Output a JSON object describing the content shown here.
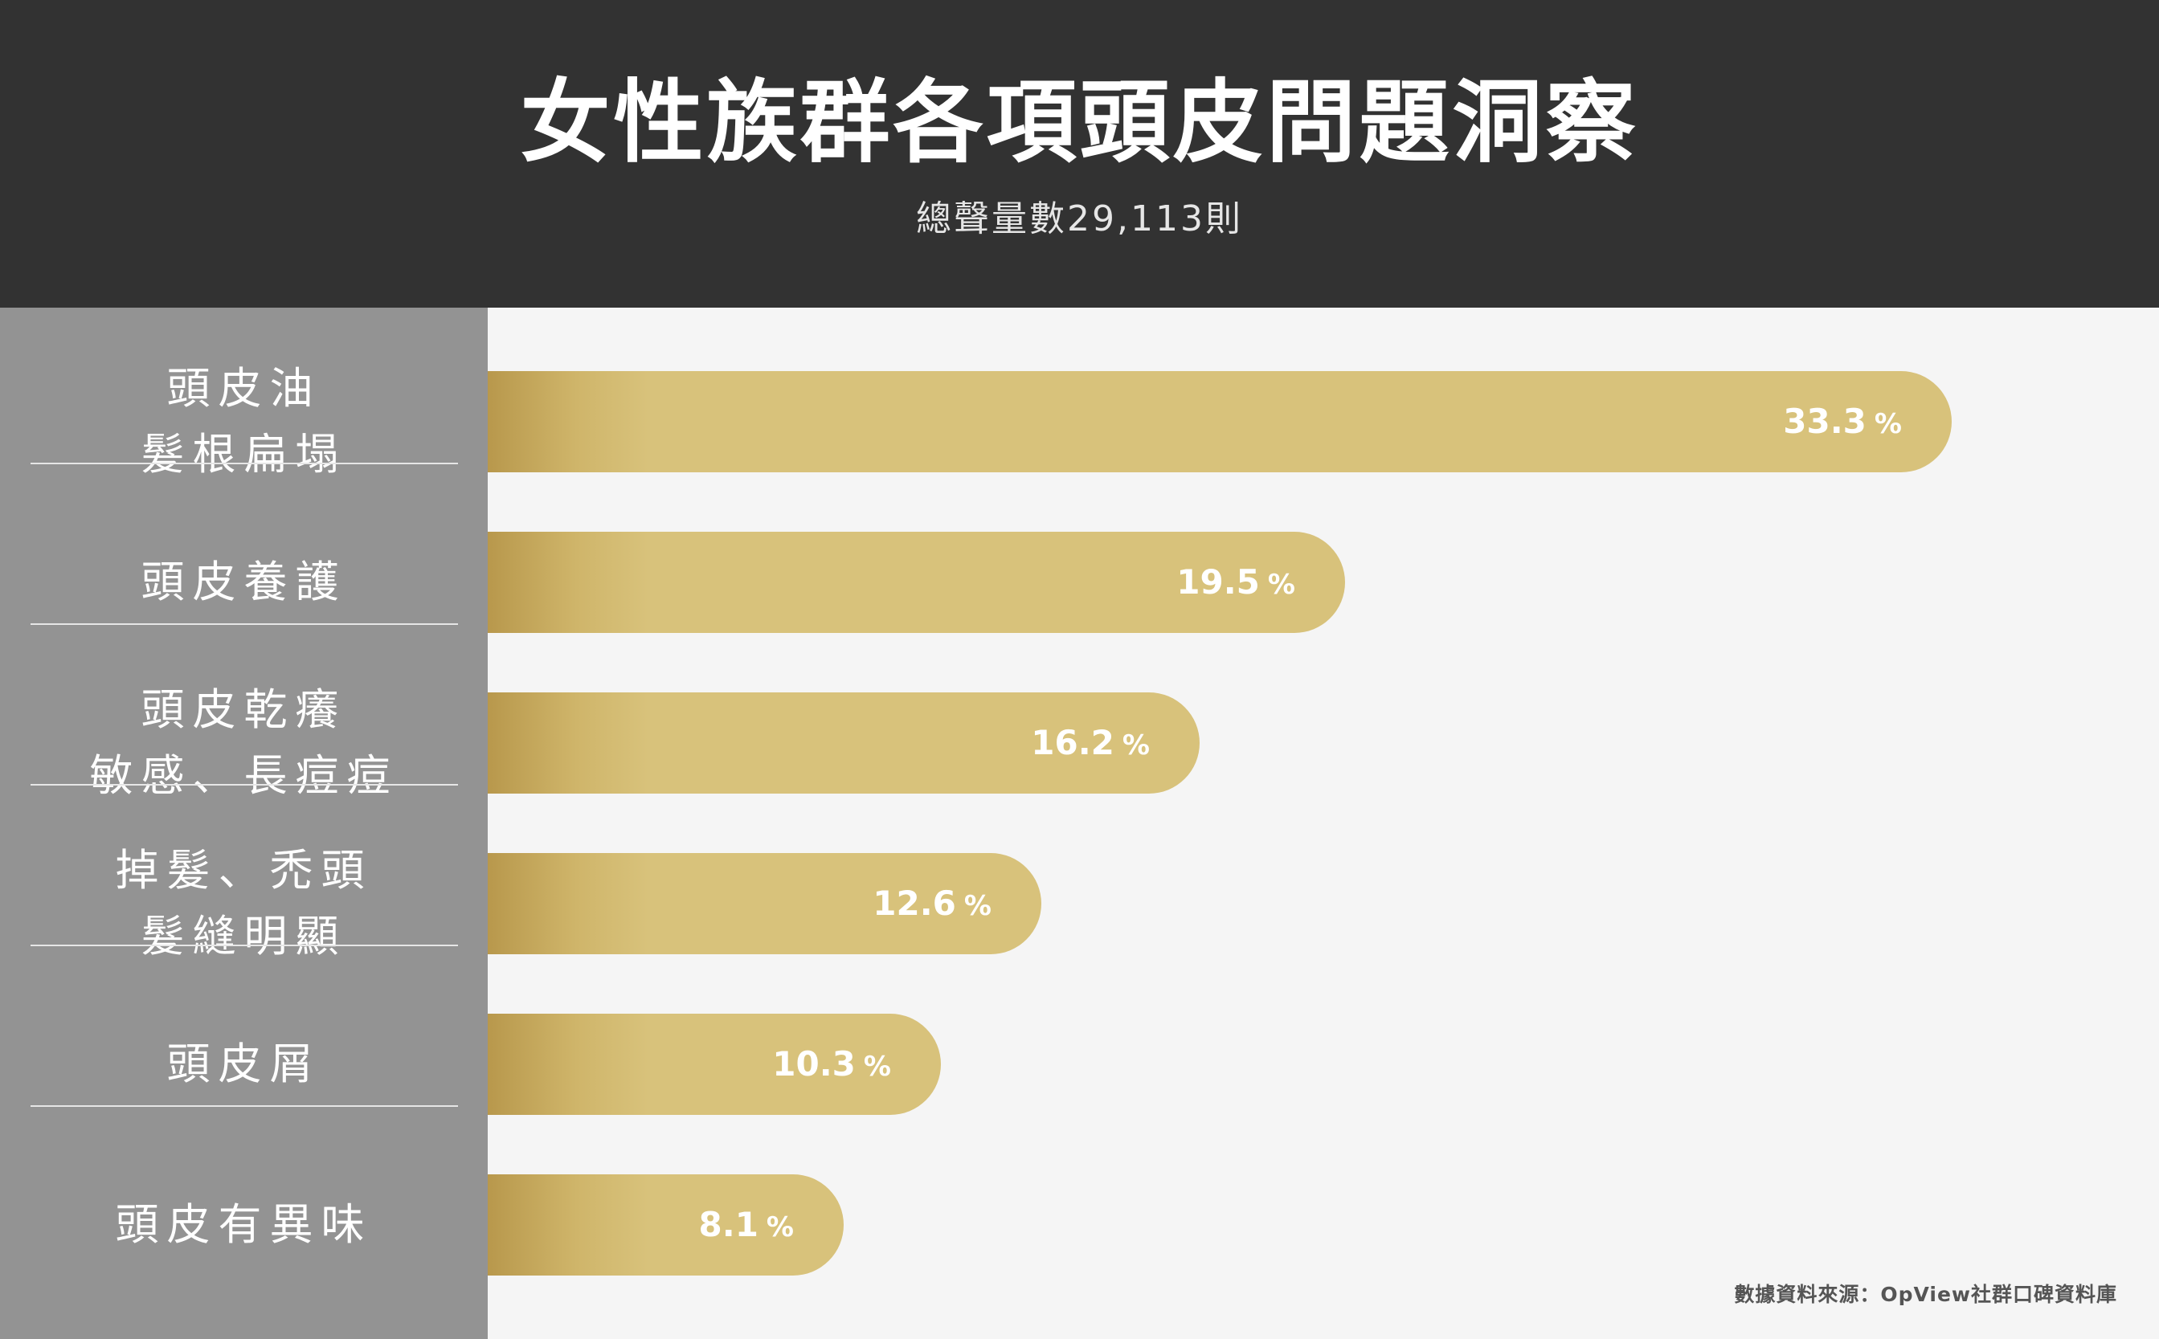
{
  "header": {
    "title": "女性族群各項頭皮問題洞察",
    "subtitle": "總聲量數29,113則"
  },
  "source": "數據資料來源：OpView社群口碑資料庫",
  "colors": {
    "header_bg": "#323232",
    "sidebar_bg": "#939393",
    "bar": "#d8c27b",
    "bar_gradient_start": "#b8984c",
    "chart_bg": "#f5f5f5"
  },
  "chart_data": {
    "type": "bar",
    "orientation": "horizontal",
    "title": "女性族群各項頭皮問題洞察",
    "subtitle": "總聲量數29,113則",
    "unit": "%",
    "categories": [
      [
        "頭皮油",
        "髮根扁塌"
      ],
      [
        "頭皮養護"
      ],
      [
        "頭皮乾癢",
        "敏感、長痘痘"
      ],
      [
        "掉髮、禿頭",
        "髮縫明顯"
      ],
      [
        "頭皮屑"
      ],
      [
        "頭皮有異味"
      ]
    ],
    "values": [
      33.3,
      19.5,
      16.2,
      12.6,
      10.3,
      8.1
    ],
    "value_labels": [
      "33.3",
      "19.5",
      "16.2",
      "12.6",
      "10.3",
      "8.1"
    ],
    "xlim": [
      0,
      33.3
    ],
    "grid": false,
    "legend": "none"
  }
}
